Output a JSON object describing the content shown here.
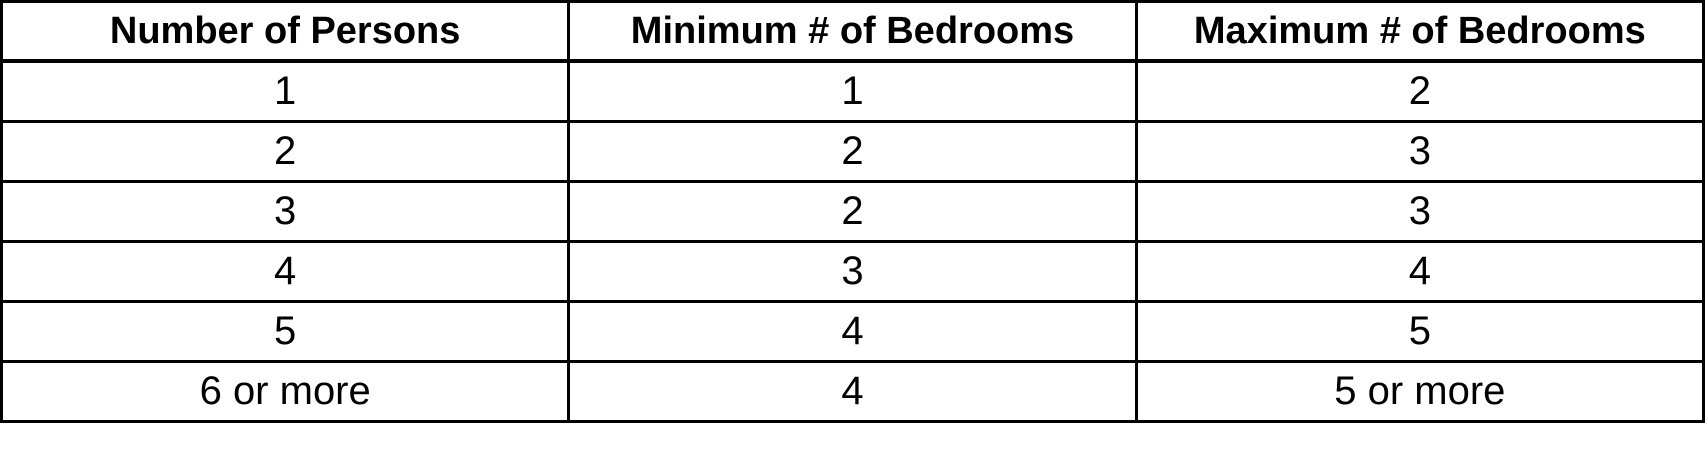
{
  "chart_data": {
    "type": "table",
    "title": "",
    "columns": [
      "Number of Persons",
      "Minimum # of Bedrooms",
      "Maximum # of Bedrooms"
    ],
    "rows": [
      [
        "1",
        "1",
        "2"
      ],
      [
        "2",
        "2",
        "3"
      ],
      [
        "3",
        "2",
        "3"
      ],
      [
        "4",
        "3",
        "4"
      ],
      [
        "5",
        "4",
        "5"
      ],
      [
        "6 or more",
        "4",
        "5 or more"
      ]
    ],
    "layout": {
      "columns_equal_width": true,
      "header_bold": true,
      "grid": "all-borders"
    }
  },
  "colors": {
    "border": "#000000",
    "text": "#000000",
    "background": "#ffffff"
  }
}
